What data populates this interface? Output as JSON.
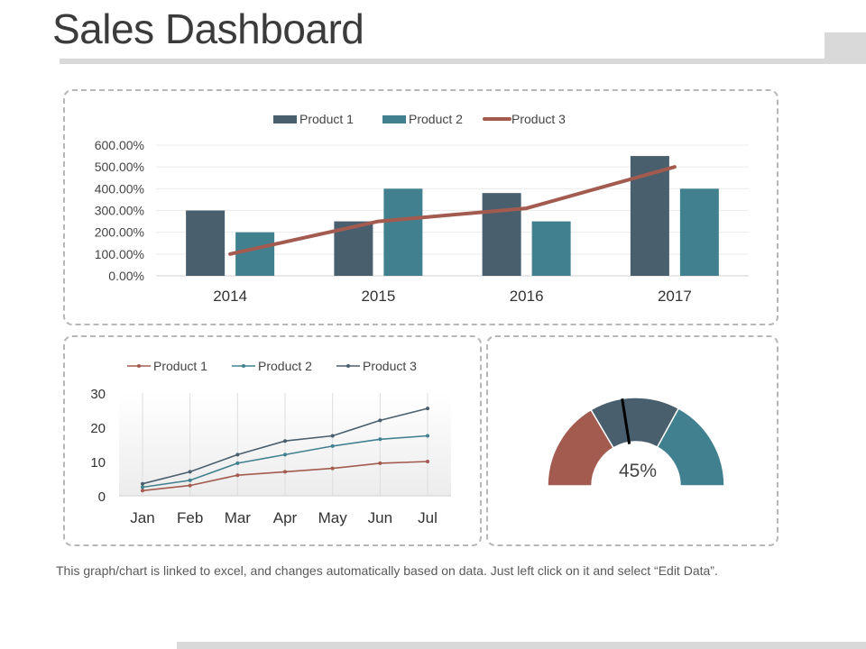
{
  "title": "Sales Dashboard",
  "footnote": "This graph/chart is linked to excel, and changes automatically based on data. Just left click on it and select “Edit Data”.",
  "colors": {
    "product1_bar": "#4a5f6e",
    "product2_bar": "#41818f",
    "product3_line": "#a35b4f",
    "line_p1": "#a35b4f",
    "line_p2": "#41818f",
    "line_p3": "#4a5f6e",
    "gauge_red": "#a35b4f",
    "gauge_dark": "#4a5f6e",
    "gauge_teal": "#41818f"
  },
  "chart_data": [
    {
      "type": "bar",
      "categories": [
        "2014",
        "2015",
        "2016",
        "2017"
      ],
      "series": [
        {
          "name": "Product  1",
          "kind": "bar",
          "values": [
            300,
            250,
            380,
            550
          ]
        },
        {
          "name": "Product 2",
          "kind": "bar",
          "values": [
            200,
            400,
            250,
            400
          ]
        },
        {
          "name": "Product 3",
          "kind": "line",
          "values": [
            100,
            250,
            310,
            500
          ]
        }
      ],
      "ylim": [
        0,
        600
      ],
      "yticks": [
        "0.00%",
        "100.00%",
        "200.00%",
        "300.00%",
        "400.00%",
        "500.00%",
        "600.00%"
      ],
      "legend": "top",
      "grid": true
    },
    {
      "type": "line",
      "categories": [
        "Jan",
        "Feb",
        "Mar",
        "Apr",
        "May",
        "Jun",
        "Jul"
      ],
      "series": [
        {
          "name": "Product 1",
          "values": [
            1.5,
            3,
            6,
            7,
            8,
            9.5,
            10
          ]
        },
        {
          "name": "Product 2",
          "values": [
            2.5,
            4.5,
            9.5,
            12,
            14.5,
            16.5,
            17.5
          ]
        },
        {
          "name": "Product 3",
          "values": [
            3.5,
            7,
            12,
            16,
            17.5,
            22,
            25.5
          ]
        }
      ],
      "ylim": [
        0,
        30
      ],
      "yticks": [
        "0",
        "10",
        "20",
        "30"
      ],
      "legend": "top",
      "grid": "vertical"
    },
    {
      "type": "gauge",
      "value": 45,
      "label": "45%",
      "segments": [
        {
          "color": "gauge_red",
          "share": 33
        },
        {
          "color": "gauge_dark",
          "share": 33
        },
        {
          "color": "gauge_teal",
          "share": 34
        }
      ]
    }
  ]
}
